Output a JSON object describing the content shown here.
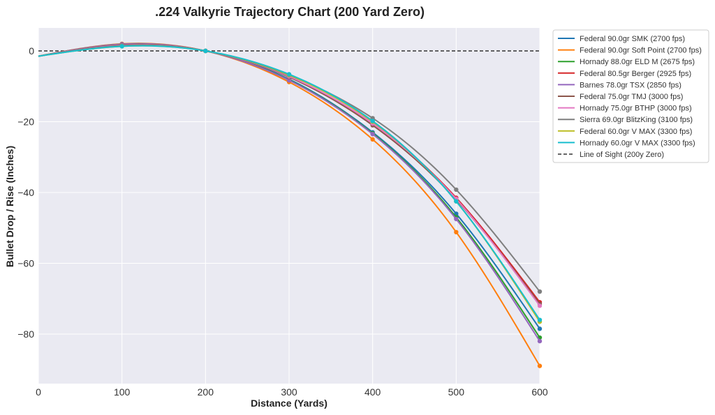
{
  "chart_data": {
    "type": "line",
    "title": ".224 Valkyrie Trajectory Chart (200 Yard Zero)",
    "xlabel": "Distance (Yards)",
    "ylabel": "Bullet Drop / Rise (Inches)",
    "xlim": [
      0,
      600
    ],
    "ylim": [
      -94,
      6.5
    ],
    "x_ticks": [
      0,
      100,
      200,
      300,
      400,
      500,
      600
    ],
    "x_tick_labels": [
      "0",
      "100",
      "200",
      "300",
      "400",
      "500",
      "600"
    ],
    "y_ticks": [
      0,
      -20,
      -40,
      -60,
      -80
    ],
    "y_tick_labels": [
      "0",
      "−20",
      "−40",
      "−60",
      "−80"
    ],
    "grid": true,
    "legend_position": "outside-right",
    "x": [
      0,
      100,
      200,
      300,
      400,
      500,
      600
    ],
    "series": [
      {
        "name": "Federal 90.0gr SMK (2700 fps)",
        "color": "#1f77b4",
        "values": [
          -1.5,
          1.8,
          0,
          -8.0,
          -23.0,
          -46.0,
          -78.5
        ]
      },
      {
        "name": "Federal 90.0gr Soft Point (2700 fps)",
        "color": "#ff7f0e",
        "values": [
          -1.5,
          2.0,
          0,
          -8.8,
          -25.0,
          -51.2,
          -89.0
        ]
      },
      {
        "name": "Hornady 88.0gr ELD M (2675 fps)",
        "color": "#2ca02c",
        "values": [
          -1.5,
          1.9,
          0,
          -8.2,
          -23.3,
          -47.0,
          -81.0
        ]
      },
      {
        "name": "Federal 80.5gr Berger (2925 fps)",
        "color": "#d62728",
        "values": [
          -1.5,
          1.6,
          0,
          -7.3,
          -20.5,
          -41.5,
          -71.0
        ]
      },
      {
        "name": "Barnes 78.0gr TSX (2850 fps)",
        "color": "#9467bd",
        "values": [
          -1.5,
          1.9,
          0,
          -8.3,
          -23.5,
          -47.5,
          -82.0
        ]
      },
      {
        "name": "Federal 75.0gr TMJ (3000 fps)",
        "color": "#8c564b",
        "values": [
          -1.5,
          1.7,
          0,
          -7.4,
          -21.0,
          -42.0,
          -71.5
        ]
      },
      {
        "name": "Hornady 75.0gr BTHP (3000 fps)",
        "color": "#e377c2",
        "values": [
          -1.5,
          1.6,
          0,
          -7.2,
          -20.5,
          -41.8,
          -72.0
        ]
      },
      {
        "name": "Sierra 69.0gr BlitzKing (3100 fps)",
        "color": "#7f7f7f",
        "values": [
          -1.5,
          1.5,
          0,
          -6.9,
          -19.0,
          -39.2,
          -68.0
        ]
      },
      {
        "name": "Federal 60.0gr V MAX (3300 fps)",
        "color": "#bcbd22",
        "values": [
          -1.5,
          1.3,
          0,
          -6.8,
          -20.0,
          -42.5,
          -76.5
        ]
      },
      {
        "name": "Hornady 60.0gr V MAX (3300 fps)",
        "color": "#17becf",
        "values": [
          -1.5,
          1.3,
          0,
          -6.6,
          -19.8,
          -42.5,
          -76.0
        ]
      }
    ],
    "reference_line": {
      "name": "Line of Sight (200y Zero)",
      "y": 0,
      "color": "#333333",
      "style": "dashed"
    }
  }
}
